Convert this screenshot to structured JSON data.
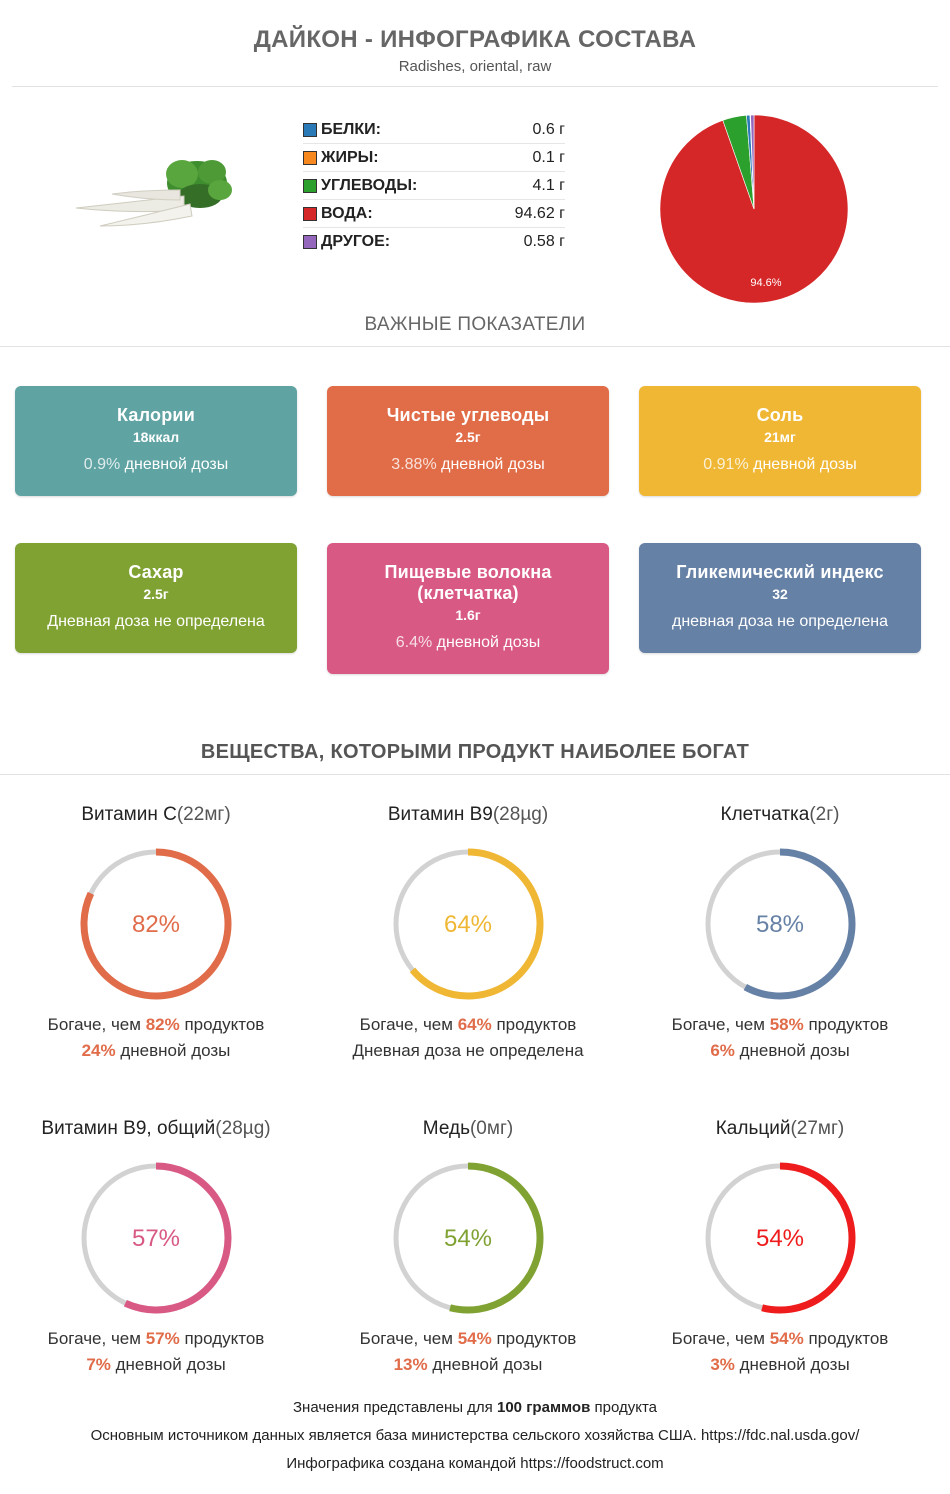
{
  "header": {
    "title": "ДАЙКОН - ИНФОГРАФИКА СОСТАВА",
    "subtitle": "Radishes, oriental, raw"
  },
  "macros": [
    {
      "name": "БЕЛКИ:",
      "value": "0.6 г",
      "color": "#2a7ab8"
    },
    {
      "name": "ЖИРЫ:",
      "value": "0.1 г",
      "color": "#f7881f"
    },
    {
      "name": "УГЛЕВОДЫ:",
      "value": "4.1 г",
      "color": "#2ca02c"
    },
    {
      "name": "ВОДА:",
      "value": "94.62 г",
      "color": "#d62728"
    },
    {
      "name": "ДРУГОЕ:",
      "value": "0.58 г",
      "color": "#9467bd"
    }
  ],
  "chart_data": {
    "type": "pie",
    "slices": [
      {
        "label": "ВОДА",
        "value": 94.62,
        "color": "#d62728"
      },
      {
        "label": "УГЛЕВОДЫ",
        "value": 4.1,
        "color": "#2ca02c"
      },
      {
        "label": "БЕЛКИ",
        "value": 0.6,
        "color": "#2a7ab8"
      },
      {
        "label": "ЖИРЫ",
        "value": 0.1,
        "color": "#f7881f"
      },
      {
        "label": "ДРУГОЕ",
        "value": 0.58,
        "color": "#9467bd"
      }
    ],
    "data_labels": [
      "94.6%"
    ]
  },
  "key_indicators": {
    "title": "ВАЖНЫЕ ПОКАЗАТЕЛИ",
    "cards": [
      {
        "name": "Калории",
        "value": "18ккал",
        "dose_pct": "0.9%",
        "dose_text": "дневной дозы",
        "color": "#5fa3a3"
      },
      {
        "name": "Чистые углеводы",
        "value": "2.5г",
        "dose_pct": "3.88%",
        "dose_text": "дневной дозы",
        "color": "#e16c48"
      },
      {
        "name": "Соль",
        "value": "21мг",
        "dose_pct": "0.91%",
        "dose_text": "дневной дозы",
        "color": "#efb734"
      },
      {
        "name": "Сахар",
        "value": "2.5г",
        "dose_pct": "",
        "dose_text": "Дневная доза не определена",
        "color": "#80a233"
      },
      {
        "name": "Пищевые волокна (клетчатка)",
        "value": "1.6г",
        "dose_pct": "6.4%",
        "dose_text": "дневной дозы",
        "color": "#d85983"
      },
      {
        "name": "Гликемический индекс",
        "value": "32",
        "dose_pct": "",
        "dose_text": "дневная доза не определена",
        "color": "#6681a6"
      }
    ]
  },
  "rich_in": {
    "title": "ВЕЩЕСТВА, КОТОРЫМИ ПРОДУКТ НАИБОЛЕЕ БОГАТ",
    "items": [
      {
        "name": "Витамин C",
        "amount": "(22мг)",
        "percent": 82,
        "label": "82%",
        "color": "#e06c4a",
        "richer_prefix": "Богаче, чем",
        "richer_pct": "82%",
        "richer_suffix": "продуктов",
        "dose_pct": "24%",
        "dose_text": "дневной дозы"
      },
      {
        "name": "Витамин B9",
        "amount": "(28µg)",
        "percent": 64,
        "label": "64%",
        "color": "#efb734",
        "richer_prefix": "Богаче, чем",
        "richer_pct": "64%",
        "richer_suffix": "продуктов",
        "dose_pct": "",
        "dose_text": "Дневная доза не определена"
      },
      {
        "name": "Клетчатка",
        "amount": "(2г)",
        "percent": 58,
        "label": "58%",
        "color": "#6681a6",
        "richer_prefix": "Богаче, чем",
        "richer_pct": "58%",
        "richer_suffix": "продуктов",
        "dose_pct": "6%",
        "dose_text": "дневной дозы"
      },
      {
        "name": "Витамин B9, общий",
        "amount": "(28µg)",
        "percent": 57,
        "label": "57%",
        "color": "#d85983",
        "richer_prefix": "Богаче, чем",
        "richer_pct": "57%",
        "richer_suffix": "продуктов",
        "dose_pct": "7%",
        "dose_text": "дневной дозы"
      },
      {
        "name": "Медь",
        "amount": "(0мг)",
        "percent": 54,
        "label": "54%",
        "color": "#80a233",
        "richer_prefix": "Богаче, чем",
        "richer_pct": "54%",
        "richer_suffix": "продуктов",
        "dose_pct": "13%",
        "dose_text": "дневной дозы"
      },
      {
        "name": "Кальций",
        "amount": "(27мг)",
        "percent": 54,
        "label": "54%",
        "color": "#ee1c1c",
        "richer_prefix": "Богаче, чем",
        "richer_pct": "54%",
        "richer_suffix": "продуктов",
        "dose_pct": "3%",
        "dose_text": "дневной дозы"
      }
    ]
  },
  "footer": {
    "line1_a": "Значения представлены для",
    "line1_b": "100",
    "line1_c": "граммов",
    "line1_d": "продукта",
    "line2": "Основным источником данных является база министерства сельского хозяйства США. https://fdc.nal.usda.gov/",
    "line3": "Инфографика создана командой https://foodstruct.com"
  },
  "colors": {
    "ring_track": "#d2d2d2",
    "accent": "#e06c4a"
  }
}
